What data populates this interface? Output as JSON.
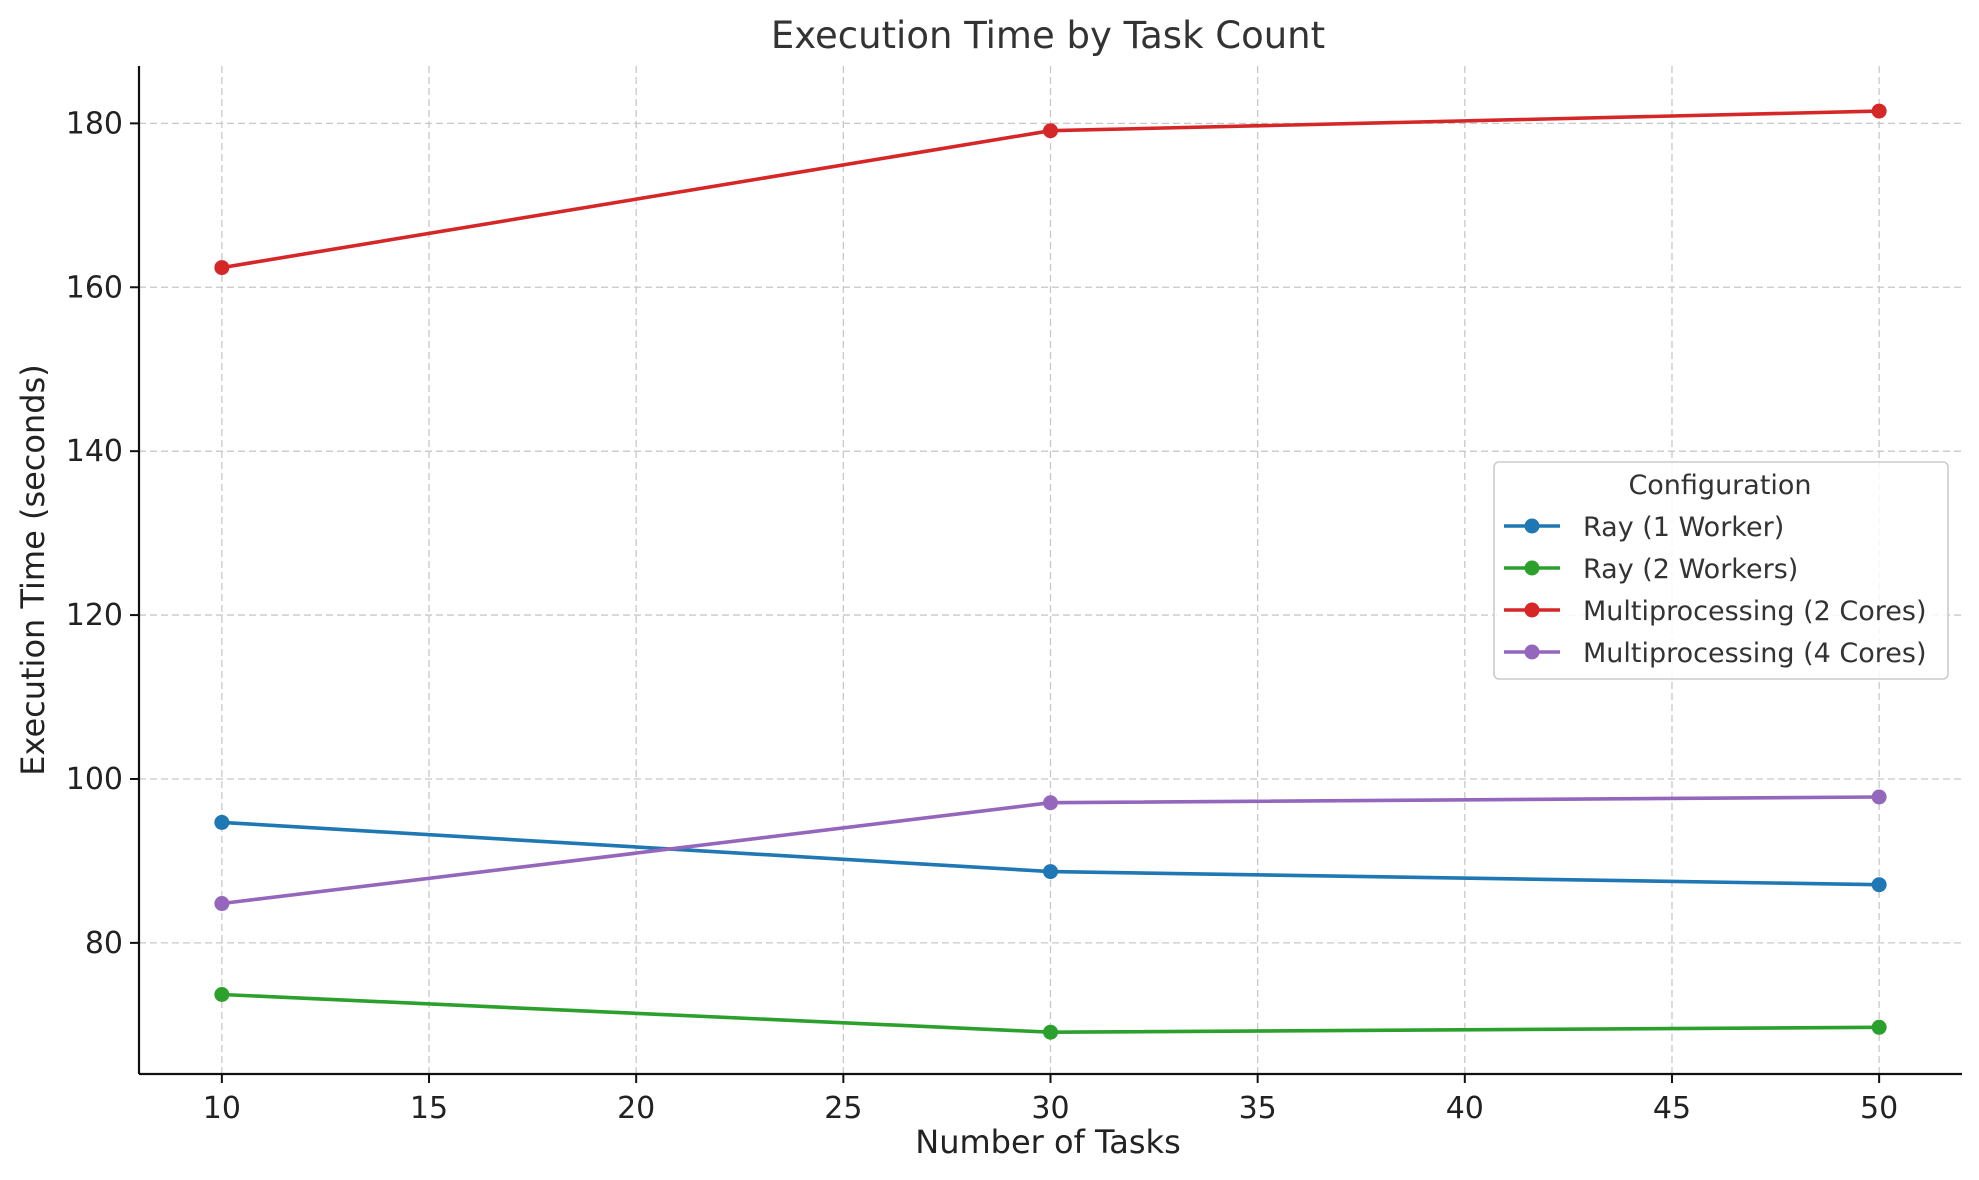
{
  "chart_data": {
    "type": "line",
    "title": "Execution Time by Task Count",
    "xlabel": "Number of Tasks",
    "ylabel": "Execution Time (seconds)",
    "xlim": [
      8,
      52
    ],
    "ylim": [
      64,
      187
    ],
    "xticks": [
      10,
      15,
      20,
      25,
      30,
      35,
      40,
      45,
      50
    ],
    "yticks": [
      80,
      100,
      120,
      140,
      160,
      180
    ],
    "grid": true,
    "legend": {
      "title": "Configuration",
      "placement": "center-right"
    },
    "x": [
      10,
      30,
      50
    ],
    "series": [
      {
        "name": "Ray (1 Worker)",
        "color": "#1f77b4",
        "values": [
          94.7,
          88.7,
          87.1
        ]
      },
      {
        "name": "Ray (2 Workers)",
        "color": "#2ca02c",
        "values": [
          73.7,
          69.1,
          69.7
        ]
      },
      {
        "name": "Multiprocessing (2 Cores)",
        "color": "#d62728",
        "values": [
          162.4,
          179.1,
          181.5
        ]
      },
      {
        "name": "Multiprocessing (4 Cores)",
        "color": "#9467bd",
        "values": [
          84.8,
          97.1,
          97.8
        ]
      }
    ]
  }
}
